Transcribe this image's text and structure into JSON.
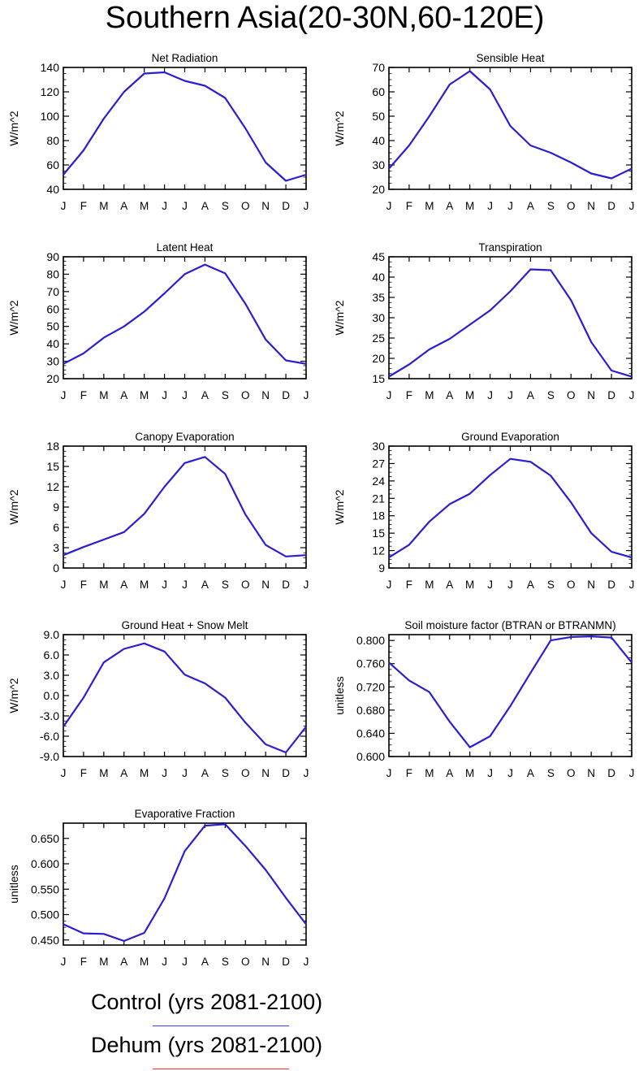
{
  "page_title": "Southern Asia(20-30N,60-120E)",
  "legend": [
    {
      "label": "Control (yrs 2081-2100)",
      "color": "#3344ee"
    },
    {
      "label": "Dehum (yrs 2081-2100)",
      "color": "#ee3322"
    }
  ],
  "line_color": "#2a1fd0",
  "chart_data": [
    {
      "type": "line",
      "title": "Net Radiation",
      "ylabel": "W/m^2",
      "categories": [
        "J",
        "F",
        "M",
        "A",
        "M",
        "J",
        "J",
        "A",
        "S",
        "O",
        "N",
        "D",
        "J"
      ],
      "ylim": [
        40,
        140
      ],
      "yticks": [
        40,
        60,
        80,
        100,
        120,
        140
      ],
      "ytick_labels": [
        "40",
        "60",
        "80",
        "100",
        "120",
        "140"
      ],
      "series": [
        {
          "values": [
            52,
            72,
            98,
            120,
            135,
            136,
            129,
            125,
            115,
            90,
            62,
            47,
            52
          ]
        }
      ]
    },
    {
      "type": "line",
      "title": "Sensible Heat",
      "ylabel": "W/m^2",
      "categories": [
        "J",
        "F",
        "M",
        "A",
        "M",
        "J",
        "J",
        "A",
        "S",
        "O",
        "N",
        "D",
        "J"
      ],
      "ylim": [
        20,
        70
      ],
      "yticks": [
        20,
        30,
        40,
        50,
        60,
        70
      ],
      "ytick_labels": [
        "20",
        "30",
        "40",
        "50",
        "60",
        "70"
      ],
      "series": [
        {
          "values": [
            28.5,
            38,
            50,
            63,
            68.5,
            61,
            46,
            38,
            35,
            31,
            26.5,
            24.5,
            28.5
          ]
        }
      ]
    },
    {
      "type": "line",
      "title": "Latent Heat",
      "ylabel": "W/m^2",
      "categories": [
        "J",
        "F",
        "M",
        "A",
        "M",
        "J",
        "J",
        "A",
        "S",
        "O",
        "N",
        "D",
        "J"
      ],
      "ylim": [
        20,
        90
      ],
      "yticks": [
        20,
        30,
        40,
        50,
        60,
        70,
        80,
        90
      ],
      "ytick_labels": [
        "20",
        "30",
        "40",
        "50",
        "60",
        "70",
        "80",
        "90"
      ],
      "series": [
        {
          "values": [
            28.5,
            34.5,
            43.5,
            50,
            58.5,
            69,
            80,
            85.5,
            80.5,
            63,
            42.5,
            30.5,
            28.5
          ]
        }
      ]
    },
    {
      "type": "line",
      "title": "Transpiration",
      "ylabel": "W/m^2",
      "categories": [
        "J",
        "F",
        "M",
        "A",
        "M",
        "J",
        "J",
        "A",
        "S",
        "O",
        "N",
        "D",
        "J"
      ],
      "ylim": [
        15,
        45
      ],
      "yticks": [
        15,
        20,
        25,
        30,
        35,
        40,
        45
      ],
      "ytick_labels": [
        "15",
        "20",
        "25",
        "30",
        "35",
        "40",
        "45"
      ],
      "series": [
        {
          "values": [
            15.5,
            18.5,
            22.2,
            24.8,
            28.3,
            31.8,
            36.5,
            41.9,
            41.7,
            34.3,
            24,
            17,
            15.5
          ]
        }
      ]
    },
    {
      "type": "line",
      "title": "Canopy Evaporation",
      "ylabel": "W/m^2",
      "categories": [
        "J",
        "F",
        "M",
        "A",
        "M",
        "J",
        "J",
        "A",
        "S",
        "O",
        "N",
        "D",
        "J"
      ],
      "ylim": [
        0,
        18
      ],
      "yticks": [
        0,
        3,
        6,
        9,
        12,
        15,
        18
      ],
      "ytick_labels": [
        "0",
        "3",
        "6",
        "9",
        "12",
        "15",
        "18"
      ],
      "series": [
        {
          "values": [
            1.9,
            3.1,
            4.2,
            5.3,
            8,
            12,
            15.5,
            16.4,
            13.9,
            7.9,
            3.4,
            1.7,
            1.9
          ]
        }
      ]
    },
    {
      "type": "line",
      "title": "Ground Evaporation",
      "ylabel": "W/m^2",
      "categories": [
        "J",
        "F",
        "M",
        "A",
        "M",
        "J",
        "J",
        "A",
        "S",
        "O",
        "N",
        "D",
        "J"
      ],
      "ylim": [
        9,
        30
      ],
      "yticks": [
        9,
        12,
        15,
        18,
        21,
        24,
        27,
        30
      ],
      "ytick_labels": [
        "9",
        "12",
        "15",
        "18",
        "21",
        "24",
        "27",
        "30"
      ],
      "series": [
        {
          "values": [
            10.8,
            13,
            17,
            20,
            21.8,
            25,
            27.8,
            27.3,
            24.9,
            20.3,
            15,
            11.8,
            10.8
          ]
        }
      ]
    },
    {
      "type": "line",
      "title": "Ground Heat + Snow Melt",
      "ylabel": "W/m^2",
      "categories": [
        "J",
        "F",
        "M",
        "A",
        "M",
        "J",
        "J",
        "A",
        "S",
        "O",
        "N",
        "D",
        "J"
      ],
      "ylim": [
        -9,
        9
      ],
      "yticks": [
        -9,
        -6,
        -3,
        0,
        3,
        6,
        9
      ],
      "ytick_labels": [
        "-9.0",
        "-6.0",
        "-3.0",
        "0.0",
        "3.0",
        "6.0",
        "9.0"
      ],
      "series": [
        {
          "values": [
            -4.6,
            -0.3,
            4.9,
            6.9,
            7.7,
            6.5,
            3.1,
            1.8,
            -0.3,
            -4,
            -7.2,
            -8.4,
            -4.6
          ]
        }
      ]
    },
    {
      "type": "line",
      "title": "Soil moisture factor (BTRAN or BTRANMN)",
      "ylabel": "unitless",
      "categories": [
        "J",
        "F",
        "M",
        "A",
        "M",
        "J",
        "J",
        "A",
        "S",
        "O",
        "N",
        "D",
        "J"
      ],
      "ylim": [
        0.6,
        0.81
      ],
      "yticks": [
        0.6,
        0.64,
        0.68,
        0.72,
        0.76,
        0.8
      ],
      "ytick_labels": [
        "0.600",
        "0.640",
        "0.680",
        "0.720",
        "0.760",
        "0.800"
      ],
      "series": [
        {
          "values": [
            0.762,
            0.731,
            0.711,
            0.66,
            0.616,
            0.635,
            0.687,
            0.744,
            0.8,
            0.806,
            0.807,
            0.805,
            0.762
          ]
        }
      ]
    },
    {
      "type": "line",
      "title": "Evaporative Fraction",
      "ylabel": "unitless",
      "categories": [
        "J",
        "F",
        "M",
        "A",
        "M",
        "J",
        "J",
        "A",
        "S",
        "O",
        "N",
        "D",
        "J"
      ],
      "ylim": [
        0.44,
        0.68
      ],
      "yticks": [
        0.45,
        0.5,
        0.55,
        0.6,
        0.65
      ],
      "ytick_labels": [
        "0.450",
        "0.500",
        "0.550",
        "0.600",
        "0.650"
      ],
      "series": [
        {
          "values": [
            0.481,
            0.463,
            0.462,
            0.448,
            0.464,
            0.532,
            0.625,
            0.675,
            0.678,
            0.635,
            0.588,
            0.533,
            0.481
          ]
        }
      ]
    }
  ]
}
